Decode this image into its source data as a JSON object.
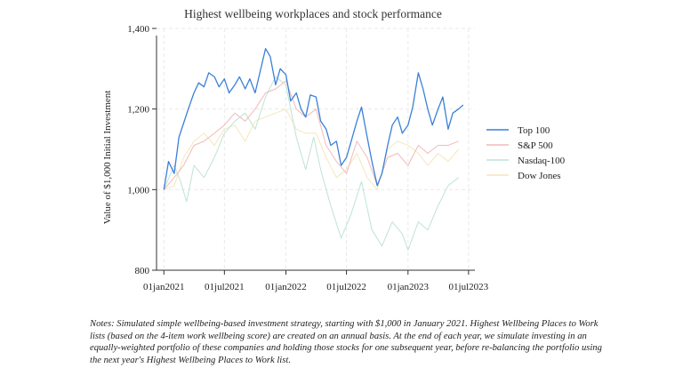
{
  "chart_data": {
    "type": "line",
    "title": "Highest wellbeing workplaces and stock performance",
    "ylabel": "Value of $1,000 Initial Investment",
    "xlabel": "",
    "x_ticks": [
      "01jan2021",
      "01jul2021",
      "01jan2022",
      "01jul2022",
      "01jan2023",
      "01jul2023"
    ],
    "y_ticks": [
      "800",
      "1,000",
      "1,200",
      "1,400"
    ],
    "ylim": [
      800,
      1400
    ],
    "xlim": [
      "2020-12-10",
      "2023-07-20"
    ],
    "grid": true,
    "legend_position": "right",
    "series": [
      {
        "name": "Top 100",
        "color": "#3a80d9",
        "points": [
          [
            "2021-01-01",
            1000
          ],
          [
            "2021-01-15",
            1070
          ],
          [
            "2021-02-01",
            1040
          ],
          [
            "2021-02-15",
            1130
          ],
          [
            "2021-03-01",
            1165
          ],
          [
            "2021-03-15",
            1200
          ],
          [
            "2021-04-01",
            1240
          ],
          [
            "2021-04-15",
            1265
          ],
          [
            "2021-05-01",
            1255
          ],
          [
            "2021-05-15",
            1290
          ],
          [
            "2021-06-01",
            1280
          ],
          [
            "2021-06-15",
            1255
          ],
          [
            "2021-07-01",
            1275
          ],
          [
            "2021-07-15",
            1240
          ],
          [
            "2021-08-01",
            1260
          ],
          [
            "2021-08-15",
            1280
          ],
          [
            "2021-09-01",
            1250
          ],
          [
            "2021-09-15",
            1275
          ],
          [
            "2021-10-01",
            1240
          ],
          [
            "2021-10-15",
            1290
          ],
          [
            "2021-11-01",
            1350
          ],
          [
            "2021-11-15",
            1330
          ],
          [
            "2021-12-01",
            1260
          ],
          [
            "2021-12-15",
            1300
          ],
          [
            "2022-01-01",
            1285
          ],
          [
            "2022-01-15",
            1220
          ],
          [
            "2022-02-01",
            1240
          ],
          [
            "2022-02-15",
            1200
          ],
          [
            "2022-03-01",
            1180
          ],
          [
            "2022-03-15",
            1235
          ],
          [
            "2022-04-01",
            1230
          ],
          [
            "2022-04-15",
            1170
          ],
          [
            "2022-05-01",
            1150
          ],
          [
            "2022-05-15",
            1110
          ],
          [
            "2022-06-01",
            1120
          ],
          [
            "2022-06-15",
            1060
          ],
          [
            "2022-07-01",
            1080
          ],
          [
            "2022-07-15",
            1120
          ],
          [
            "2022-08-01",
            1170
          ],
          [
            "2022-08-15",
            1205
          ],
          [
            "2022-09-01",
            1130
          ],
          [
            "2022-09-15",
            1070
          ],
          [
            "2022-10-01",
            1010
          ],
          [
            "2022-10-15",
            1040
          ],
          [
            "2022-11-01",
            1110
          ],
          [
            "2022-11-15",
            1160
          ],
          [
            "2022-12-01",
            1180
          ],
          [
            "2022-12-15",
            1140
          ],
          [
            "2023-01-01",
            1160
          ],
          [
            "2023-01-15",
            1205
          ],
          [
            "2023-02-01",
            1290
          ],
          [
            "2023-02-15",
            1250
          ],
          [
            "2023-03-01",
            1200
          ],
          [
            "2023-03-15",
            1160
          ],
          [
            "2023-04-01",
            1200
          ],
          [
            "2023-04-15",
            1230
          ],
          [
            "2023-05-01",
            1150
          ],
          [
            "2023-05-15",
            1190
          ],
          [
            "2023-06-01",
            1200
          ],
          [
            "2023-06-15",
            1210
          ]
        ]
      },
      {
        "name": "S&P 500",
        "color": "#f3b9b9",
        "points": [
          [
            "2021-01-01",
            1000
          ],
          [
            "2021-02-01",
            1030
          ],
          [
            "2021-03-01",
            1060
          ],
          [
            "2021-04-01",
            1110
          ],
          [
            "2021-05-01",
            1120
          ],
          [
            "2021-06-01",
            1140
          ],
          [
            "2021-07-01",
            1160
          ],
          [
            "2021-08-01",
            1190
          ],
          [
            "2021-09-01",
            1170
          ],
          [
            "2021-10-01",
            1200
          ],
          [
            "2021-11-01",
            1240
          ],
          [
            "2021-12-01",
            1250
          ],
          [
            "2022-01-01",
            1270
          ],
          [
            "2022-02-01",
            1200
          ],
          [
            "2022-03-01",
            1180
          ],
          [
            "2022-04-01",
            1200
          ],
          [
            "2022-05-01",
            1110
          ],
          [
            "2022-06-01",
            1070
          ],
          [
            "2022-07-01",
            1040
          ],
          [
            "2022-08-01",
            1120
          ],
          [
            "2022-09-01",
            1080
          ],
          [
            "2022-10-01",
            1010
          ],
          [
            "2022-11-01",
            1080
          ],
          [
            "2022-12-01",
            1090
          ],
          [
            "2023-01-01",
            1060
          ],
          [
            "2023-02-01",
            1110
          ],
          [
            "2023-03-01",
            1090
          ],
          [
            "2023-04-01",
            1110
          ],
          [
            "2023-05-01",
            1110
          ],
          [
            "2023-06-01",
            1120
          ]
        ]
      },
      {
        "name": "Nasdaq-100",
        "color": "#bfe3d5",
        "points": [
          [
            "2021-01-01",
            1000
          ],
          [
            "2021-02-01",
            1060
          ],
          [
            "2021-02-20",
            1020
          ],
          [
            "2021-03-10",
            970
          ],
          [
            "2021-04-01",
            1060
          ],
          [
            "2021-05-01",
            1030
          ],
          [
            "2021-06-01",
            1080
          ],
          [
            "2021-07-01",
            1140
          ],
          [
            "2021-08-01",
            1170
          ],
          [
            "2021-09-01",
            1190
          ],
          [
            "2021-10-01",
            1150
          ],
          [
            "2021-11-01",
            1230
          ],
          [
            "2021-12-01",
            1280
          ],
          [
            "2022-01-01",
            1260
          ],
          [
            "2022-02-01",
            1130
          ],
          [
            "2022-03-01",
            1050
          ],
          [
            "2022-03-25",
            1130
          ],
          [
            "2022-04-15",
            1050
          ],
          [
            "2022-05-15",
            960
          ],
          [
            "2022-06-15",
            880
          ],
          [
            "2022-07-15",
            940
          ],
          [
            "2022-08-15",
            1020
          ],
          [
            "2022-09-15",
            900
          ],
          [
            "2022-10-15",
            860
          ],
          [
            "2022-11-15",
            920
          ],
          [
            "2022-12-15",
            890
          ],
          [
            "2023-01-01",
            850
          ],
          [
            "2023-02-01",
            920
          ],
          [
            "2023-03-01",
            900
          ],
          [
            "2023-04-01",
            960
          ],
          [
            "2023-05-01",
            1010
          ],
          [
            "2023-06-01",
            1030
          ]
        ]
      },
      {
        "name": "Dow Jones",
        "color": "#f6e6ba",
        "points": [
          [
            "2021-01-01",
            1000
          ],
          [
            "2021-02-01",
            1010
          ],
          [
            "2021-03-01",
            1080
          ],
          [
            "2021-04-01",
            1120
          ],
          [
            "2021-05-01",
            1140
          ],
          [
            "2021-06-01",
            1110
          ],
          [
            "2021-07-01",
            1150
          ],
          [
            "2021-08-01",
            1160
          ],
          [
            "2021-09-01",
            1120
          ],
          [
            "2021-10-01",
            1170
          ],
          [
            "2021-11-01",
            1180
          ],
          [
            "2021-12-01",
            1190
          ],
          [
            "2022-01-01",
            1200
          ],
          [
            "2022-02-01",
            1150
          ],
          [
            "2022-03-01",
            1140
          ],
          [
            "2022-04-01",
            1140
          ],
          [
            "2022-05-01",
            1080
          ],
          [
            "2022-06-01",
            1030
          ],
          [
            "2022-07-01",
            1050
          ],
          [
            "2022-08-01",
            1090
          ],
          [
            "2022-09-01",
            1030
          ],
          [
            "2022-10-01",
            1000
          ],
          [
            "2022-11-01",
            1100
          ],
          [
            "2022-12-01",
            1120
          ],
          [
            "2023-01-01",
            1110
          ],
          [
            "2023-02-01",
            1090
          ],
          [
            "2023-03-01",
            1060
          ],
          [
            "2023-04-01",
            1090
          ],
          [
            "2023-05-01",
            1070
          ],
          [
            "2023-06-01",
            1100
          ]
        ]
      }
    ]
  },
  "notes": "Notes: Simulated simple wellbeing-based investment strategy, starting with $1,000 in January 2021. Highest Wellbeing Places to Work lists (based on the 4-item work wellbeing score) are created on an annual basis. At the end of each year, we simulate investing in an equally-weighted portfolio of these companies and holding those stocks for one subsequent year, before re-balancing the portfolio using the next year's Highest Wellbeing Places to Work list."
}
